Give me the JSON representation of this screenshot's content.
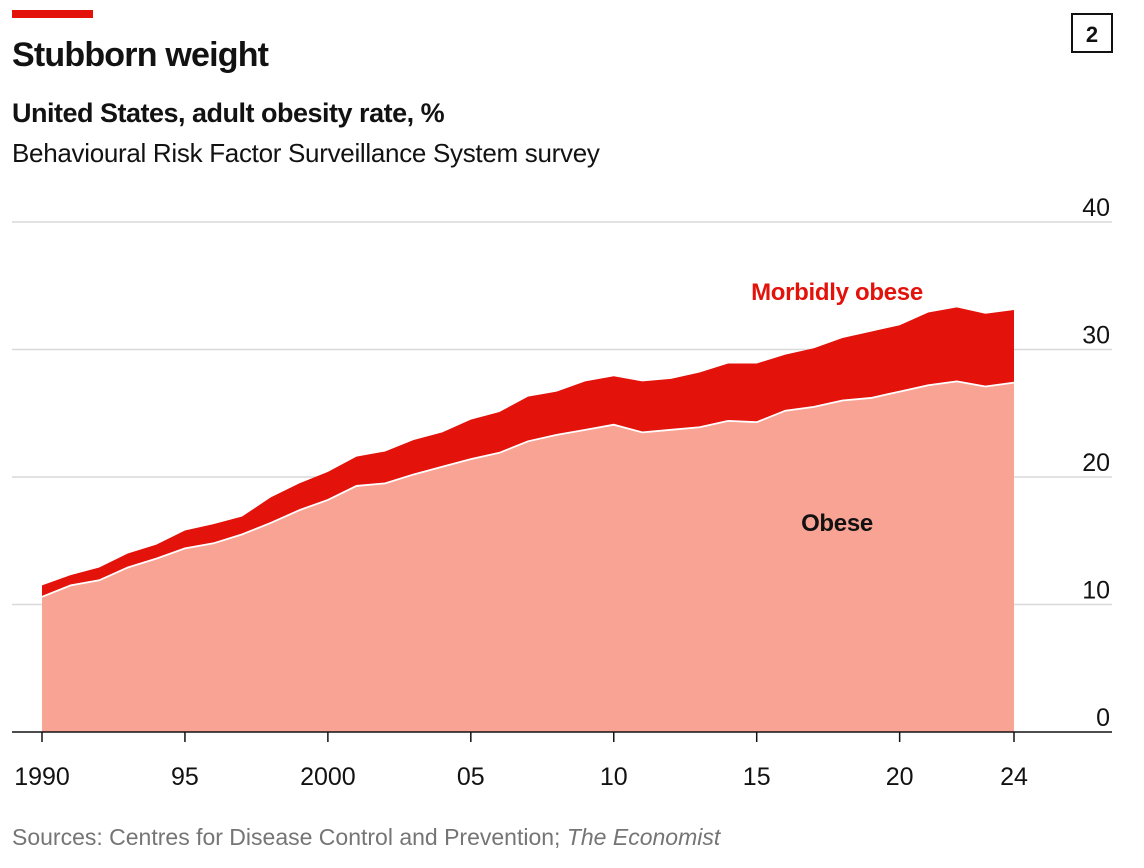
{
  "chart_data": {
    "type": "stacked-area",
    "chart_number": "2",
    "title": "Stubborn weight",
    "subtitle": "United States, adult obesity rate, %",
    "note": "Behavioural Risk Factor Surveillance System survey",
    "source": [
      "Sources: Centres for Disease Control and Prevention;",
      "The Economist"
    ],
    "x": [
      1990,
      1991,
      1992,
      1993,
      1994,
      1995,
      1996,
      1997,
      1998,
      1999,
      2000,
      2001,
      2002,
      2003,
      2004,
      2005,
      2006,
      2007,
      2008,
      2009,
      2010,
      2011,
      2012,
      2013,
      2014,
      2015,
      2016,
      2017,
      2018,
      2019,
      2020,
      2021,
      2022,
      2023,
      2024
    ],
    "series": [
      {
        "name": "Obese",
        "color": "#f9a394",
        "values": [
          10.6,
          11.5,
          11.9,
          12.9,
          13.6,
          14.4,
          14.8,
          15.5,
          16.4,
          17.4,
          18.2,
          19.3,
          19.5,
          20.2,
          20.8,
          21.4,
          21.9,
          22.8,
          23.3,
          23.7,
          24.1,
          23.5,
          23.7,
          23.9,
          24.4,
          24.3,
          25.2,
          25.5,
          26.0,
          26.2,
          26.7,
          27.2,
          27.5,
          27.1,
          27.4
        ]
      },
      {
        "name": "Morbidly obese",
        "color": "#e3120b",
        "values": [
          0.9,
          0.8,
          1.0,
          1.1,
          1.1,
          1.4,
          1.5,
          1.4,
          2.0,
          2.1,
          2.2,
          2.3,
          2.5,
          2.7,
          2.7,
          3.1,
          3.2,
          3.5,
          3.4,
          3.8,
          3.8,
          4.0,
          4.0,
          4.3,
          4.5,
          4.6,
          4.4,
          4.6,
          4.9,
          5.2,
          5.2,
          5.7,
          5.8,
          5.7,
          5.7
        ]
      }
    ],
    "xlim": [
      1990,
      2024
    ],
    "xticks": [
      {
        "value": 1990,
        "label": "1990"
      },
      {
        "value": 1995,
        "label": "95"
      },
      {
        "value": 2000,
        "label": "2000"
      },
      {
        "value": 2005,
        "label": "05"
      },
      {
        "value": 2010,
        "label": "10"
      },
      {
        "value": 2015,
        "label": "15"
      },
      {
        "value": 2020,
        "label": "20"
      },
      {
        "value": 2024,
        "label": "24"
      }
    ],
    "ylim": [
      0,
      40
    ],
    "yticks": [
      0,
      10,
      20,
      30,
      40
    ],
    "grid": true
  }
}
